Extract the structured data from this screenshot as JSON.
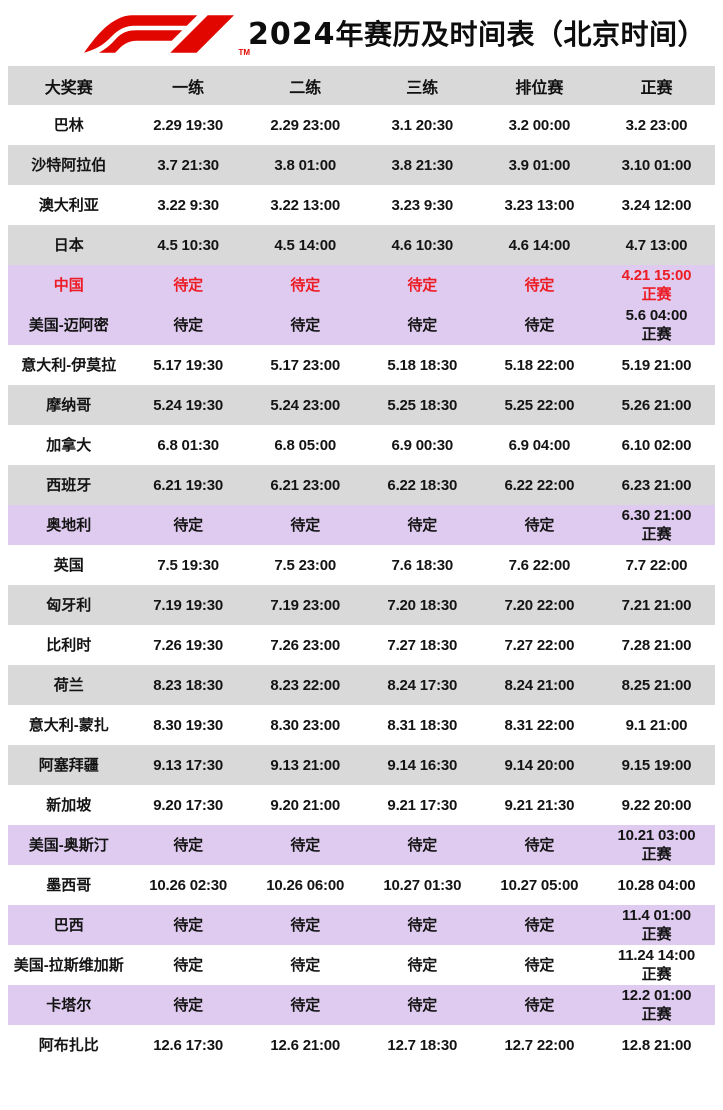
{
  "header": {
    "logo_name": "F1",
    "logo_tm": "TM",
    "title_year": "2024",
    "title_rest": "年赛历及时间表（北京时间）"
  },
  "colors": {
    "logo_red": "#e10600",
    "text_red": "#ed1c24",
    "row_gray": "#d9d9d9",
    "row_purple": "#dfcbef",
    "text_black": "#141414"
  },
  "table": {
    "columns": [
      "大奖赛",
      "一练",
      "二练",
      "三练",
      "排位赛",
      "正赛"
    ],
    "tbd_label": "待定",
    "rows": [
      {
        "name": "巴林",
        "bg": "white",
        "red": false,
        "cells": [
          "2.29 19:30",
          "2.29 23:00",
          "3.1 20:30",
          "3.2 00:00",
          "3.2 23:00"
        ]
      },
      {
        "name": "沙特阿拉伯",
        "bg": "gray",
        "red": false,
        "cells": [
          "3.7 21:30",
          "3.8 01:00",
          "3.8 21:30",
          "3.9 01:00",
          "3.10 01:00"
        ]
      },
      {
        "name": "澳大利亚",
        "bg": "white",
        "red": false,
        "cells": [
          "3.22 9:30",
          "3.22 13:00",
          "3.23 9:30",
          "3.23 13:00",
          "3.24 12:00"
        ]
      },
      {
        "name": "日本",
        "bg": "gray",
        "red": false,
        "cells": [
          "4.5 10:30",
          "4.5 14:00",
          "4.6 10:30",
          "4.6 14:00",
          "4.7 13:00"
        ]
      },
      {
        "name": "中国",
        "bg": "purple",
        "red": true,
        "cells": [
          "待定",
          "待定",
          "待定",
          "待定",
          "4.21 15:00\n正赛"
        ]
      },
      {
        "name": "美国-迈阿密",
        "bg": "purple",
        "red": false,
        "cells": [
          "待定",
          "待定",
          "待定",
          "待定",
          "5.6 04:00\n正赛"
        ]
      },
      {
        "name": "意大利-伊莫拉",
        "bg": "white",
        "red": false,
        "cells": [
          "5.17 19:30",
          "5.17 23:00",
          "5.18 18:30",
          "5.18 22:00",
          "5.19 21:00"
        ]
      },
      {
        "name": "摩纳哥",
        "bg": "gray",
        "red": false,
        "cells": [
          "5.24 19:30",
          "5.24 23:00",
          "5.25 18:30",
          "5.25 22:00",
          "5.26 21:00"
        ]
      },
      {
        "name": "加拿大",
        "bg": "white",
        "red": false,
        "cells": [
          "6.8 01:30",
          "6.8 05:00",
          "6.9 00:30",
          "6.9 04:00",
          "6.10 02:00"
        ]
      },
      {
        "name": "西班牙",
        "bg": "gray",
        "red": false,
        "cells": [
          "6.21 19:30",
          "6.21 23:00",
          "6.22 18:30",
          "6.22 22:00",
          "6.23 21:00"
        ]
      },
      {
        "name": "奥地利",
        "bg": "purple",
        "red": false,
        "cells": [
          "待定",
          "待定",
          "待定",
          "待定",
          "6.30 21:00\n正赛"
        ]
      },
      {
        "name": "英国",
        "bg": "white",
        "red": false,
        "cells": [
          "7.5 19:30",
          "7.5 23:00",
          "7.6 18:30",
          "7.6 22:00",
          "7.7 22:00"
        ]
      },
      {
        "name": "匈牙利",
        "bg": "gray",
        "red": false,
        "cells": [
          "7.19 19:30",
          "7.19 23:00",
          "7.20 18:30",
          "7.20 22:00",
          "7.21 21:00"
        ]
      },
      {
        "name": "比利时",
        "bg": "white",
        "red": false,
        "cells": [
          "7.26 19:30",
          "7.26 23:00",
          "7.27 18:30",
          "7.27 22:00",
          "7.28 21:00"
        ]
      },
      {
        "name": "荷兰",
        "bg": "gray",
        "red": false,
        "cells": [
          "8.23 18:30",
          "8.23 22:00",
          "8.24 17:30",
          "8.24 21:00",
          "8.25 21:00"
        ]
      },
      {
        "name": "意大利-蒙扎",
        "bg": "white",
        "red": false,
        "cells": [
          "8.30 19:30",
          "8.30 23:00",
          "8.31 18:30",
          "8.31 22:00",
          "9.1 21:00"
        ]
      },
      {
        "name": "阿塞拜疆",
        "bg": "gray",
        "red": false,
        "cells": [
          "9.13 17:30",
          "9.13 21:00",
          "9.14 16:30",
          "9.14 20:00",
          "9.15 19:00"
        ]
      },
      {
        "name": "新加坡",
        "bg": "white",
        "red": false,
        "cells": [
          "9.20 17:30",
          "9.20 21:00",
          "9.21 17:30",
          "9.21 21:30",
          "9.22 20:00"
        ]
      },
      {
        "name": "美国-奥斯汀",
        "bg": "purple",
        "red": false,
        "cells": [
          "待定",
          "待定",
          "待定",
          "待定",
          "10.21 03:00\n正赛"
        ]
      },
      {
        "name": "墨西哥",
        "bg": "white",
        "red": false,
        "cells": [
          "10.26 02:30",
          "10.26 06:00",
          "10.27 01:30",
          "10.27 05:00",
          "10.28 04:00"
        ]
      },
      {
        "name": "巴西",
        "bg": "purple",
        "red": false,
        "cells": [
          "待定",
          "待定",
          "待定",
          "待定",
          "11.4 01:00\n正赛"
        ]
      },
      {
        "name": "美国-拉斯维加斯",
        "bg": "white",
        "red": false,
        "cells": [
          "待定",
          "待定",
          "待定",
          "待定",
          "11.24 14:00\n正赛"
        ]
      },
      {
        "name": "卡塔尔",
        "bg": "purple",
        "red": false,
        "cells": [
          "待定",
          "待定",
          "待定",
          "待定",
          "12.2 01:00\n正赛"
        ]
      },
      {
        "name": "阿布扎比",
        "bg": "white",
        "red": false,
        "cells": [
          "12.6 17:30",
          "12.6 21:00",
          "12.7 18:30",
          "12.7 22:00",
          "12.8 21:00"
        ]
      }
    ]
  }
}
